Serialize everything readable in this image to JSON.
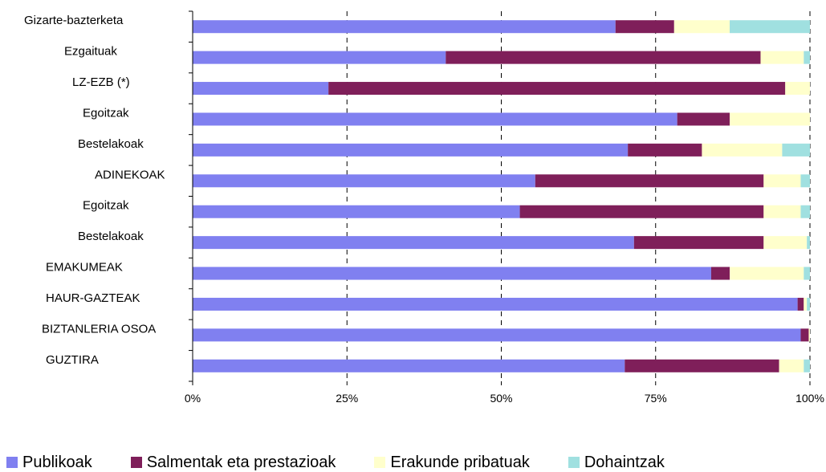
{
  "chart_data": {
    "type": "bar",
    "orientation": "horizontal",
    "stacked": "percent",
    "categories": [
      "Gizarte-bazterketa",
      "Ezgaituak",
      "LZ-EZB (*)",
      "Egoitzak",
      "Bestelakoak",
      "ADINEKOAK",
      "Egoitzak",
      "Bestelakoak",
      "EMAKUMEAK",
      "HAUR-GAZTEAK",
      "BIZTANLERIA OSOA",
      "GUZTIRA"
    ],
    "series": [
      {
        "name": "Publikoak",
        "color": "#8080f0",
        "values": [
          68.5,
          41,
          22,
          78.5,
          70.5,
          55.5,
          53,
          71.5,
          84,
          98,
          98.5,
          70
        ]
      },
      {
        "name": "Salmentak eta prestazioak",
        "color": "#7f1f5a",
        "values": [
          9.5,
          51,
          74,
          8.5,
          12,
          37,
          39.5,
          21,
          3,
          1,
          1.3,
          25
        ]
      },
      {
        "name": "Erakunde pribatuak",
        "color": "#ffffcc",
        "values": [
          9,
          7,
          4,
          13,
          13,
          6,
          6,
          7,
          12,
          0.5,
          0.2,
          4
        ]
      },
      {
        "name": "Dohaintzak",
        "color": "#a0e0e0",
        "values": [
          13,
          1,
          0,
          0,
          4.5,
          1.5,
          1.5,
          0.5,
          1,
          0.5,
          0,
          1
        ]
      }
    ],
    "xlim": [
      0,
      100
    ],
    "x_ticks": [
      "0%",
      "25%",
      "50%",
      "75%",
      "100%"
    ],
    "grid": "vertical dashed",
    "legend": "bottom"
  }
}
